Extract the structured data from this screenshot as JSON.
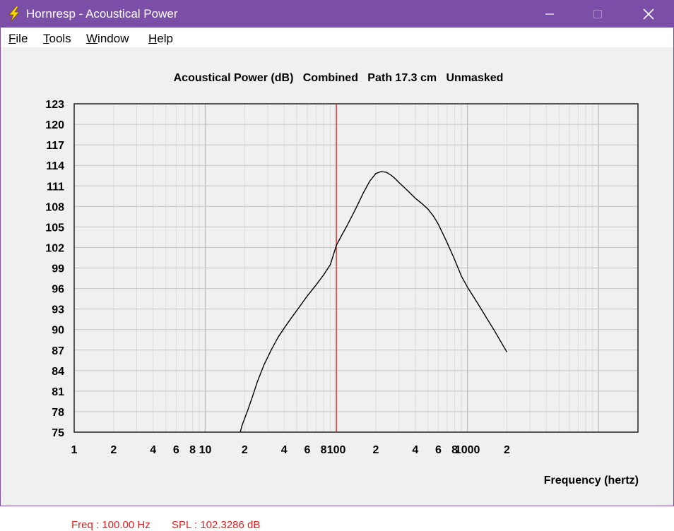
{
  "window": {
    "title": "Hornresp - Acoustical Power",
    "icon": "lightning-bolt-icon",
    "controls": [
      "minimize-icon",
      "maximize-icon",
      "close-icon"
    ]
  },
  "menu": {
    "items": [
      {
        "label": "File",
        "accel": "F",
        "rest": "ile"
      },
      {
        "label": "Tools",
        "accel": "T",
        "rest": "ools"
      },
      {
        "label": "Window",
        "accel": "W",
        "rest": "indow"
      },
      {
        "label": "Help",
        "accel": "H",
        "rest": "elp"
      }
    ]
  },
  "chart_data": {
    "type": "line",
    "title": "Acoustical Power (dB)   Combined   Path 17.3 cm   Unmasked",
    "xlabel": "Frequency (hertz)",
    "ylabel": "",
    "x_scale": "log",
    "xlim": [
      1,
      20000
    ],
    "ylim": [
      75,
      123
    ],
    "y_ticks": [
      75,
      78,
      81,
      84,
      87,
      90,
      93,
      96,
      99,
      102,
      105,
      108,
      111,
      114,
      117,
      120,
      123
    ],
    "x_tick_labels": [
      {
        "value": 1,
        "label": "1"
      },
      {
        "value": 2,
        "label": "2"
      },
      {
        "value": 4,
        "label": "4"
      },
      {
        "value": 6,
        "label": "6"
      },
      {
        "value": 8,
        "label": "8"
      },
      {
        "value": 10,
        "label": "10"
      },
      {
        "value": 20,
        "label": "2"
      },
      {
        "value": 40,
        "label": "4"
      },
      {
        "value": 60,
        "label": "6"
      },
      {
        "value": 80,
        "label": "8"
      },
      {
        "value": 100,
        "label": "100"
      },
      {
        "value": 200,
        "label": "2"
      },
      {
        "value": 400,
        "label": "4"
      },
      {
        "value": 600,
        "label": "6"
      },
      {
        "value": 800,
        "label": "8"
      },
      {
        "value": 1000,
        "label": "1000"
      },
      {
        "value": 2000,
        "label": "2"
      }
    ],
    "grid": true,
    "series": [
      {
        "x": [
          18.5,
          19,
          21,
          23,
          25,
          28,
          32,
          36,
          40,
          45,
          50,
          55,
          60,
          70,
          80,
          90,
          100,
          110,
          120,
          140,
          160,
          180,
          200,
          220,
          240,
          260,
          280,
          300,
          350,
          400,
          450,
          500,
          550,
          600,
          650,
          700,
          800,
          900,
          1000,
          1200,
          1400,
          1600,
          1800,
          2000
        ],
        "y": [
          75,
          75.9,
          78.1,
          80.3,
          82.4,
          84.8,
          87.1,
          88.9,
          90.2,
          91.6,
          92.8,
          93.9,
          94.9,
          96.5,
          98.0,
          99.5,
          102.3,
          103.8,
          105.1,
          107.6,
          109.9,
          111.7,
          112.8,
          113.1,
          113.0,
          112.6,
          112.1,
          111.5,
          110.3,
          109.2,
          108.4,
          107.6,
          106.6,
          105.4,
          104.0,
          102.7,
          100.2,
          97.8,
          96.2,
          93.8,
          91.7,
          89.9,
          88.2,
          86.7
        ]
      }
    ],
    "cursor": {
      "x": 100,
      "color": "#e02020"
    },
    "line_color": "#000000"
  },
  "status": {
    "freq": "Freq : 100.00 Hz",
    "spl": "SPL : 102.3286 dB",
    "color": "#e02020"
  }
}
